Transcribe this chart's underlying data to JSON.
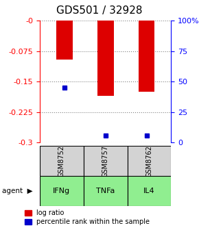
{
  "title": "GDS501 / 32928",
  "samples": [
    "GSM8752",
    "GSM8757",
    "GSM8762"
  ],
  "agents": [
    "IFNg",
    "TNFa",
    "IL4"
  ],
  "log_ratios": [
    -0.095,
    -0.185,
    -0.175
  ],
  "percentile_ranks": [
    -0.165,
    -0.283,
    -0.283
  ],
  "ylim_left": [
    -0.3,
    0.0
  ],
  "ylim_right": [
    0,
    100
  ],
  "yticks_left": [
    0.0,
    -0.075,
    -0.15,
    -0.225,
    -0.3
  ],
  "ytick_labels_left": [
    "-0",
    "-0.075",
    "-0.15",
    "-0.225",
    "-0.3"
  ],
  "yticks_right": [
    100,
    75,
    50,
    25,
    0
  ],
  "ytick_labels_right": [
    "100%",
    "75",
    "50",
    "25",
    "0"
  ],
  "bar_color": "#dd0000",
  "marker_color": "#0000cc",
  "grid_color": "#808080",
  "agent_bg_color": "#90ee90",
  "sample_bg_color": "#d3d3d3",
  "bg_color": "#ffffff",
  "title_fontsize": 11,
  "tick_fontsize": 8,
  "legend_fontsize": 7,
  "bar_width": 0.4
}
